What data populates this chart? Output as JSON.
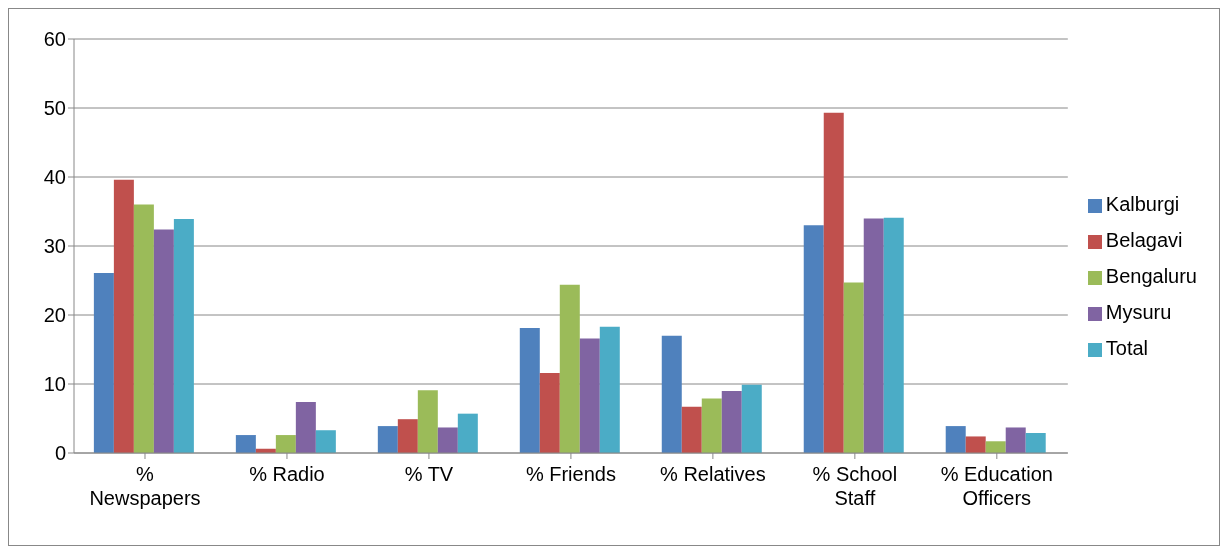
{
  "chart_data": {
    "type": "bar",
    "categories": [
      "% Newspapers",
      "% Radio",
      "% TV",
      "% Friends",
      "% Relatives",
      "% School Staff",
      "% Education Officers"
    ],
    "series": [
      {
        "name": "Kalburgi",
        "color": "#4f81bd",
        "values": [
          26.1,
          2.6,
          3.9,
          18.1,
          17,
          33,
          3.9
        ]
      },
      {
        "name": "Belagavi",
        "color": "#c0504d",
        "values": [
          39.6,
          0.6,
          4.9,
          11.6,
          6.7,
          49.3,
          2.4
        ]
      },
      {
        "name": "Bengaluru",
        "color": "#9bbb59",
        "values": [
          36,
          2.6,
          9.1,
          24.4,
          7.9,
          24.7,
          1.7
        ]
      },
      {
        "name": "Mysuru",
        "color": "#8064a2",
        "values": [
          32.4,
          7.4,
          3.7,
          16.6,
          9,
          34,
          3.7
        ]
      },
      {
        "name": "Total",
        "color": "#4bacc6",
        "values": [
          33.9,
          3.3,
          5.7,
          18.3,
          9.9,
          34.1,
          2.9
        ]
      }
    ],
    "ylim": [
      0,
      60
    ],
    "yticks": [
      0,
      10,
      20,
      30,
      40,
      50,
      60
    ],
    "grid": "y",
    "legend": "right"
  }
}
